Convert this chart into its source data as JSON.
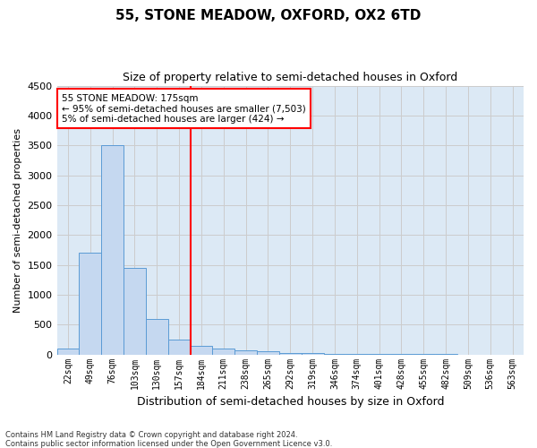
{
  "title": "55, STONE MEADOW, OXFORD, OX2 6TD",
  "subtitle": "Size of property relative to semi-detached houses in Oxford",
  "xlabel": "Distribution of semi-detached houses by size in Oxford",
  "ylabel": "Number of semi-detached properties",
  "footnote1": "Contains HM Land Registry data © Crown copyright and database right 2024.",
  "footnote2": "Contains public sector information licensed under the Open Government Licence v3.0.",
  "categories": [
    "22sqm",
    "49sqm",
    "76sqm",
    "103sqm",
    "130sqm",
    "157sqm",
    "184sqm",
    "211sqm",
    "238sqm",
    "265sqm",
    "292sqm",
    "319sqm",
    "346sqm",
    "374sqm",
    "401sqm",
    "428sqm",
    "455sqm",
    "482sqm",
    "509sqm",
    "536sqm",
    "563sqm"
  ],
  "values": [
    100,
    1700,
    3500,
    1450,
    600,
    250,
    150,
    100,
    75,
    55,
    30,
    20,
    15,
    10,
    8,
    5,
    4,
    3,
    2,
    2,
    2
  ],
  "bar_color": "#c5d8f0",
  "bar_edge_color": "#5b9bd5",
  "grid_color": "#cccccc",
  "vline_x": 5.5,
  "vline_color": "red",
  "annotation_line1": "55 STONE MEADOW: 175sqm",
  "annotation_line2": "← 95% of semi-detached houses are smaller (7,503)",
  "annotation_line3": "5% of semi-detached houses are larger (424) →",
  "ylim": [
    0,
    4500
  ],
  "plot_bg_color": "#dce9f5",
  "fig_bg_color": "#ffffff",
  "title_fontsize": 11,
  "subtitle_fontsize": 9
}
